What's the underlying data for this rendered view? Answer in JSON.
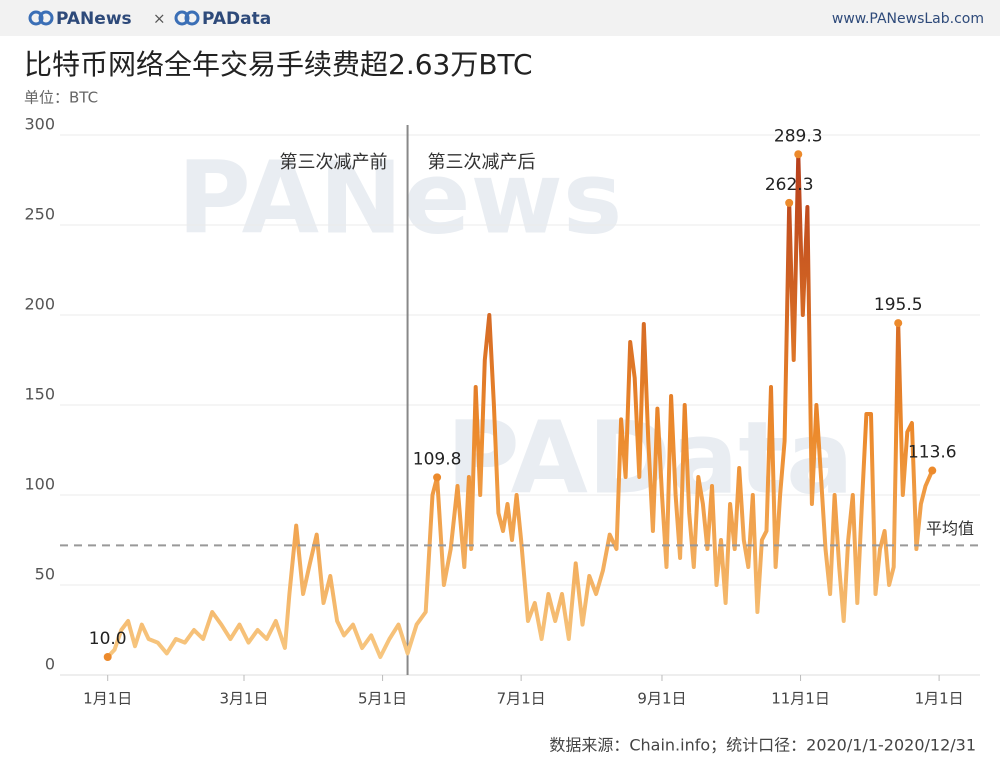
{
  "header": {
    "brand_left": "PANews",
    "brand_sep": "×",
    "brand_right": "PAData",
    "site": "www.PANewsLab.com"
  },
  "chart_data": {
    "type": "line",
    "title": "比特币网络全年交易手续费超2.63万BTC",
    "subtitle": "单位：BTC",
    "source": "数据来源：Chain.info；统计口径：2020/1/1-2020/12/31",
    "watermarks": [
      "PANews",
      "PAData"
    ],
    "annotations": [
      "第三次减产前",
      "第三次减产后"
    ],
    "halving_x": 132,
    "average": 72,
    "average_label": "平均值",
    "color_scale": [
      "#f8cc88",
      "#ec8a2c",
      "#b2381a"
    ],
    "grid": true,
    "xlim": [
      -21,
      384
    ],
    "ylim": [
      0,
      300
    ],
    "yticks": [
      0,
      50,
      100,
      150,
      200,
      250,
      300
    ],
    "xticks": [
      {
        "value": 0,
        "label": "1月1日"
      },
      {
        "value": 60,
        "label": "3月1日"
      },
      {
        "value": 121,
        "label": "5月1日"
      },
      {
        "value": 182,
        "label": "7月1日"
      },
      {
        "value": 244,
        "label": "9月1日"
      },
      {
        "value": 305,
        "label": "11月1日"
      },
      {
        "value": 366,
        "label": "1月1日"
      }
    ],
    "x": [
      0,
      3,
      6,
      9,
      12,
      15,
      18,
      22,
      26,
      30,
      34,
      38,
      42,
      46,
      50,
      54,
      58,
      62,
      66,
      70,
      74,
      78,
      80,
      83,
      86,
      89,
      92,
      95,
      98,
      101,
      104,
      108,
      112,
      116,
      120,
      124,
      128,
      132,
      136,
      140,
      143,
      145,
      148,
      151,
      154,
      157,
      159,
      160,
      162,
      164,
      166,
      168,
      170,
      172,
      174,
      176,
      178,
      180,
      182,
      185,
      188,
      191,
      194,
      197,
      200,
      203,
      206,
      209,
      212,
      215,
      218,
      221,
      224,
      226,
      228,
      230,
      232,
      234,
      236,
      238,
      240,
      242,
      244,
      246,
      248,
      250,
      252,
      254,
      256,
      258,
      260,
      262,
      264,
      266,
      268,
      270,
      272,
      274,
      276,
      278,
      280,
      282,
      284,
      286,
      288,
      290,
      292,
      294,
      296,
      298,
      300,
      302,
      304,
      306,
      308,
      310,
      312,
      314,
      316,
      318,
      320,
      322,
      324,
      326,
      328,
      330,
      332,
      334,
      336,
      338,
      340,
      342,
      344,
      346,
      348,
      350,
      352,
      354,
      356,
      358,
      360,
      363
    ],
    "values": [
      10,
      14,
      25,
      30,
      16,
      28,
      20,
      18,
      12,
      20,
      18,
      25,
      20,
      35,
      28,
      20,
      28,
      18,
      25,
      20,
      30,
      15,
      45,
      83,
      45,
      62,
      78,
      40,
      55,
      30,
      22,
      28,
      15,
      22,
      10,
      20,
      28,
      12,
      28,
      35,
      100,
      109.8,
      50,
      70,
      105,
      60,
      110,
      70,
      160,
      100,
      175,
      200,
      150,
      90,
      80,
      95,
      75,
      100,
      75,
      30,
      40,
      20,
      45,
      30,
      45,
      20,
      62,
      28,
      55,
      45,
      58,
      78,
      70,
      142,
      110,
      185,
      165,
      110,
      195,
      130,
      80,
      148,
      100,
      60,
      155,
      100,
      65,
      150,
      90,
      60,
      110,
      95,
      70,
      105,
      50,
      75,
      40,
      95,
      70,
      115,
      75,
      60,
      100,
      35,
      75,
      80,
      160,
      60,
      100,
      130,
      262.3,
      175,
      289.3,
      200,
      260,
      95,
      150,
      110,
      70,
      45,
      100,
      60,
      30,
      75,
      100,
      40,
      95,
      145,
      145,
      45,
      70,
      80,
      50,
      60,
      195.5,
      100,
      135,
      140,
      70,
      95,
      105,
      113.6
    ],
    "value_labels": [
      "10.0",
      null,
      null,
      null,
      null,
      null,
      null,
      null,
      null,
      null,
      null,
      null,
      null,
      null,
      null,
      null,
      null,
      null,
      null,
      null,
      null,
      null,
      null,
      null,
      null,
      null,
      null,
      null,
      null,
      null,
      null,
      null,
      null,
      null,
      null,
      null,
      null,
      null,
      null,
      null,
      null,
      "109.8",
      null,
      null,
      null,
      null,
      null,
      null,
      null,
      null,
      null,
      null,
      null,
      null,
      null,
      null,
      null,
      null,
      null,
      null,
      null,
      null,
      null,
      null,
      null,
      null,
      null,
      null,
      null,
      null,
      null,
      null,
      null,
      null,
      null,
      null,
      null,
      null,
      null,
      null,
      null,
      null,
      null,
      null,
      null,
      null,
      null,
      null,
      null,
      null,
      null,
      null,
      null,
      null,
      null,
      null,
      null,
      null,
      null,
      null,
      null,
      null,
      null,
      null,
      null,
      null,
      null,
      null,
      null,
      null,
      "262.3",
      null,
      "289.3",
      null,
      null,
      null,
      null,
      null,
      null,
      null,
      null,
      null,
      null,
      null,
      null,
      null,
      null,
      null,
      null,
      null,
      null,
      null,
      null,
      null,
      "195.5",
      null,
      null,
      null,
      null,
      null,
      null,
      "113.6"
    ]
  }
}
